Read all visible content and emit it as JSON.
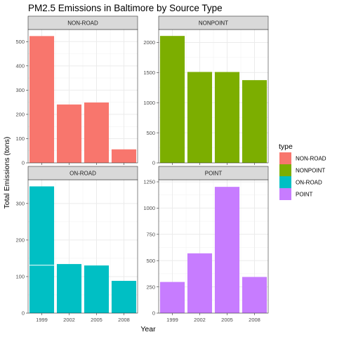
{
  "chart_data": {
    "type": "bar",
    "title": "PM2.5 Emissions in Baltimore by Source Type",
    "xlabel": "Year",
    "ylabel": "Total Emissions (tons)",
    "categories": [
      "1999",
      "2002",
      "2005",
      "2008"
    ],
    "facet_layout": "2x2",
    "grid": true,
    "legend": {
      "title": "type",
      "placement": "right",
      "items": [
        "NON-ROAD",
        "NONPOINT",
        "ON-ROAD",
        "POINT"
      ]
    },
    "panels": [
      {
        "label": "NON-ROAD",
        "color": "#F8766D",
        "values": [
          522.9,
          240.8,
          248.9,
          55.8
        ],
        "ylim": [
          0,
          550
        ],
        "yticks": [
          0,
          100,
          200,
          300,
          400,
          500
        ],
        "ytick_labels": [
          "0",
          "100",
          "200",
          "300",
          "400",
          "500"
        ]
      },
      {
        "label": "NONPOINT",
        "color": "#7CAE00",
        "values": [
          2108,
          1510,
          1509,
          1374
        ],
        "ylim": [
          0,
          2215
        ],
        "yticks": [
          0,
          500,
          1000,
          1500,
          2000
        ],
        "ytick_labels": [
          "0",
          "500",
          "1000",
          "1500",
          "2000"
        ]
      },
      {
        "label": "ON-ROAD",
        "color": "#00BFC4",
        "values": [
          346.8,
          134.3,
          130.4,
          88.3
        ],
        "ylim": [
          0,
          365
        ],
        "yticks": [
          0,
          100,
          200,
          300
        ],
        "ytick_labels": [
          "0",
          "100",
          "200",
          "300"
        ],
        "stack_line_1999": 131
      },
      {
        "label": "POINT",
        "color": "#C77CFF",
        "values": [
          296.8,
          569.3,
          1202.1,
          344.5
        ],
        "ylim": [
          0,
          1270
        ],
        "yticks": [
          0,
          250,
          500,
          750,
          1000,
          1250
        ],
        "ytick_labels": [
          "0",
          "250",
          "500",
          "750",
          "1000",
          "1250"
        ]
      }
    ]
  }
}
